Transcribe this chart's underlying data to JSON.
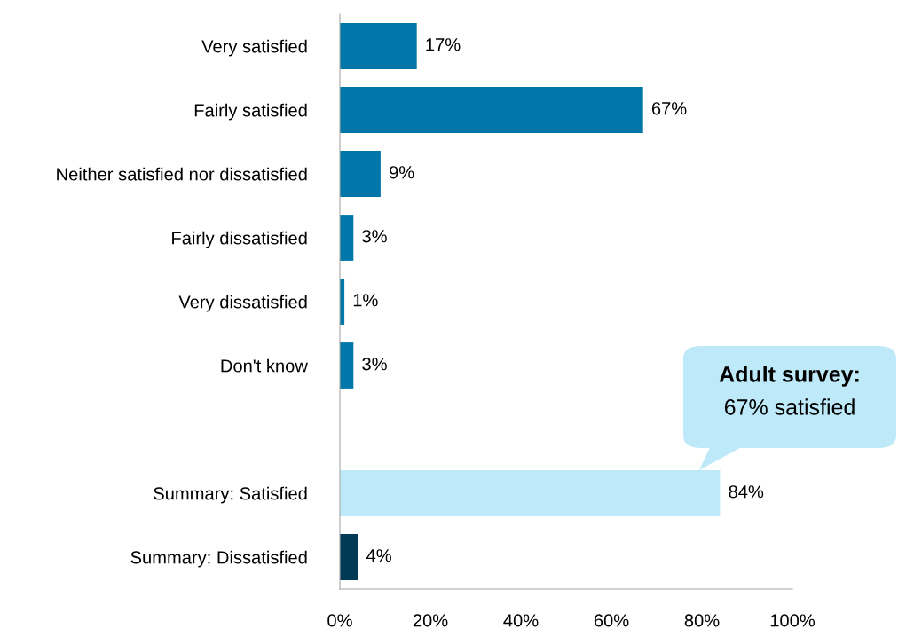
{
  "chart_data": {
    "type": "bar",
    "orientation": "horizontal",
    "categories": [
      "Very satisfied",
      "Fairly satisfied",
      "Neither satisfied nor dissatisfied",
      "Fairly dissatisfied",
      "Very dissatisfied",
      "Don't know",
      null,
      "Summary: Satisfied",
      "Summary: Dissatisfied"
    ],
    "values": [
      17,
      67,
      9,
      3,
      1,
      3,
      null,
      84,
      4
    ],
    "colors": [
      "#0077a8",
      "#0077a8",
      "#0077a8",
      "#0077a8",
      "#0077a8",
      "#0077a8",
      null,
      "#bde9f9",
      "#003a55"
    ],
    "value_labels": [
      "17%",
      "67%",
      "9%",
      "3%",
      "1%",
      "3%",
      null,
      "84%",
      "4%"
    ],
    "xlim": [
      0,
      100
    ],
    "xticks": [
      {
        "value": 0,
        "label": "0%"
      },
      {
        "value": 20,
        "label": "20%"
      },
      {
        "value": 40,
        "label": "40%"
      },
      {
        "value": 60,
        "label": "60%"
      },
      {
        "value": 80,
        "label": "80%"
      },
      {
        "value": 100,
        "label": "100%"
      }
    ],
    "annotations": [
      "Adult survey:",
      "67% satisfied"
    ],
    "grid": false,
    "legend": false
  }
}
